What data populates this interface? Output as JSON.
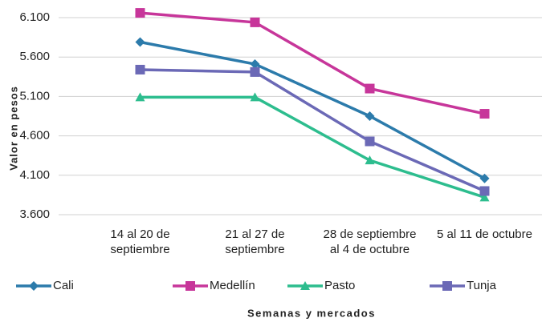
{
  "chart_data": {
    "type": "line",
    "xlabel": "Semanas y mercados",
    "ylabel": "Valor en pesos",
    "categories": [
      "14 al 20 de septiembre",
      "21 al 27 de septiembre",
      "28 de septiembre al 4 de octubre",
      "5 al 11 de octubre"
    ],
    "series": [
      {
        "name": "Cali",
        "color": "#2c7bab",
        "marker": "diamond",
        "values": [
          5790,
          5510,
          4850,
          4060
        ]
      },
      {
        "name": "Medellín",
        "color": "#c7369a",
        "marker": "square",
        "values": [
          6160,
          6040,
          5200,
          4880
        ]
      },
      {
        "name": "Pasto",
        "color": "#2dbd8e",
        "marker": "triangle",
        "values": [
          5090,
          5090,
          4290,
          3820
        ]
      },
      {
        "name": "Tunja",
        "color": "#6b69b6",
        "marker": "square",
        "values": [
          5440,
          5410,
          4530,
          3900
        ]
      }
    ],
    "ylim": [
      3600,
      6100
    ],
    "yticks": [
      {
        "value": 3600,
        "label": "3.600"
      },
      {
        "value": 4100,
        "label": "4.100"
      },
      {
        "value": 4600,
        "label": "4.600"
      },
      {
        "value": 5100,
        "label": "5.100"
      },
      {
        "value": 5600,
        "label": "5.600"
      },
      {
        "value": 6100,
        "label": "6.100"
      }
    ],
    "grid": true,
    "legend": "bottom"
  }
}
